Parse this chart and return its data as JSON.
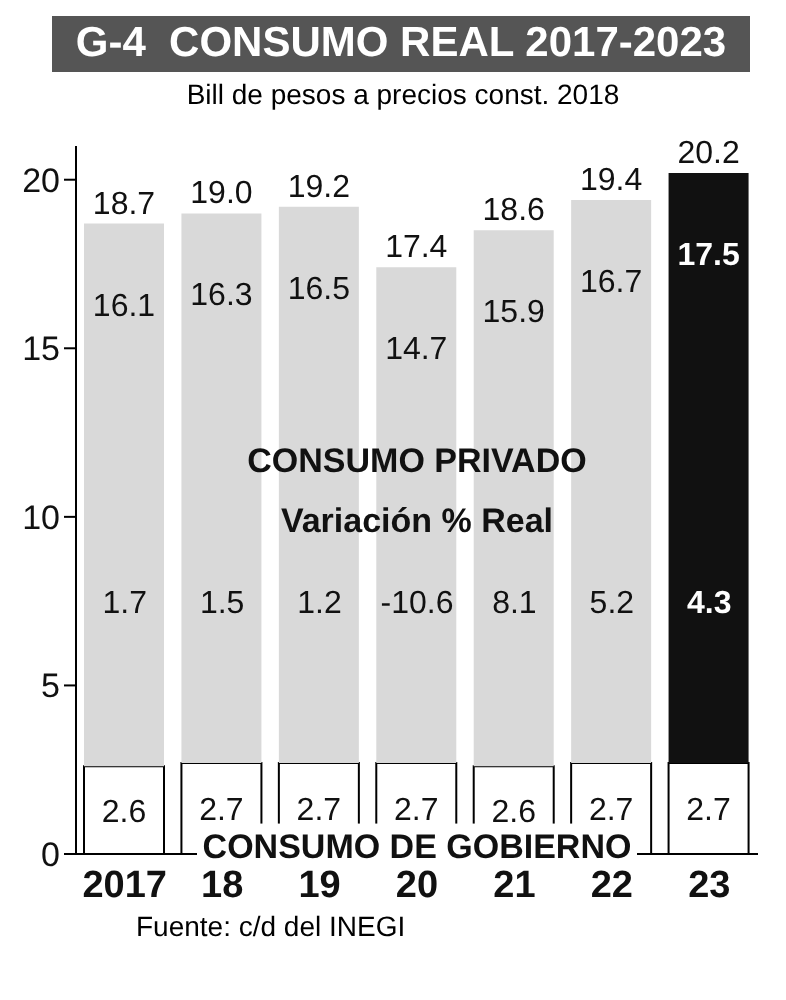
{
  "chart_data": {
    "type": "bar",
    "title": "G-4  CONSUMO REAL 2017-2023",
    "subtitle": "Bill de pesos a precios const. 2018",
    "categories": [
      "2017",
      "18",
      "19",
      "20",
      "21",
      "22",
      "23"
    ],
    "stacked": true,
    "series": [
      {
        "name": "CONSUMO DE GOBIERNO",
        "colors": [
          "#ffffff",
          "#ffffff",
          "#ffffff",
          "#ffffff",
          "#ffffff",
          "#ffffff",
          "#ffffff"
        ],
        "values": [
          2.6,
          2.7,
          2.7,
          2.7,
          2.6,
          2.7,
          2.7
        ]
      },
      {
        "name": "CONSUMO PRIVADO",
        "colors": [
          "#d9d9d9",
          "#d9d9d9",
          "#d9d9d9",
          "#d9d9d9",
          "#d9d9d9",
          "#d9d9d9",
          "#111111"
        ],
        "values": [
          16.1,
          16.3,
          16.5,
          14.7,
          15.9,
          16.7,
          17.5
        ]
      }
    ],
    "totals": [
      "18.7",
      "19.0",
      "19.2",
      "17.4",
      "18.6",
      "19.4",
      "20.2"
    ],
    "data_labels": true,
    "ylim": [
      0,
      21
    ],
    "yticks": [
      0,
      5,
      10,
      15,
      20
    ],
    "annotations": [
      "Variación % Real",
      "1.7",
      "1.5",
      "1.2",
      "-10.6",
      "8.1",
      "5.2",
      "4.3",
      "Fuente: c/d del INEGI"
    ]
  }
}
